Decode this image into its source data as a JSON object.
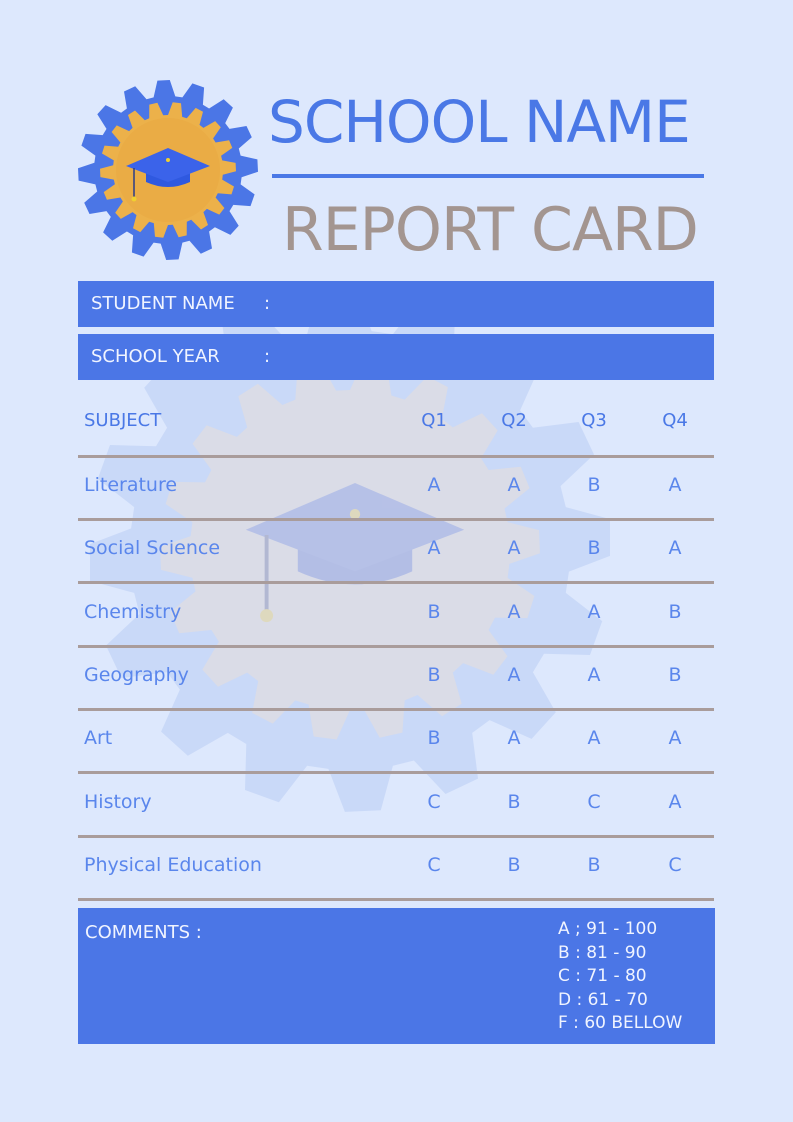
{
  "header": {
    "school_name": "SCHOOL NAME",
    "title": "REPORT CARD"
  },
  "info": {
    "student_name_label": "STUDENT NAME",
    "school_year_label": "SCHOOL YEAR",
    "separator": ":"
  },
  "table": {
    "headers": [
      "SUBJECT",
      "Q1",
      "Q2",
      "Q3",
      "Q4"
    ],
    "rows": [
      {
        "subject": "Literature",
        "grades": [
          "A",
          "A",
          "B",
          "A"
        ]
      },
      {
        "subject": "Social Science",
        "grades": [
          "A",
          "A",
          "B",
          "A"
        ]
      },
      {
        "subject": "Chemistry",
        "grades": [
          "B",
          "A",
          "A",
          "B"
        ]
      },
      {
        "subject": "Geography",
        "grades": [
          "B",
          "A",
          "A",
          "B"
        ]
      },
      {
        "subject": "Art",
        "grades": [
          "B",
          "A",
          "A",
          "A"
        ]
      },
      {
        "subject": "History",
        "grades": [
          "C",
          "B",
          "C",
          "A"
        ]
      },
      {
        "subject": "Physical Education",
        "grades": [
          "C",
          "B",
          "B",
          "C"
        ]
      }
    ]
  },
  "comments": {
    "label": "COMMENTS :",
    "grading_scale": [
      "A ; 91 - 100",
      "B : 81 - 90",
      "C : 71 - 80",
      "D : 61 - 70",
      "F : 60 BELLOW"
    ]
  },
  "colors": {
    "primary": "#4b76e6",
    "title_gray": "#a39590",
    "divider": "#a99c9b",
    "background": "#dde8fd",
    "gear_gold": "#ecb14a"
  },
  "icons": {
    "logo": "gear-graduation-cap-icon",
    "watermark": "gear-graduation-cap-watermark"
  }
}
